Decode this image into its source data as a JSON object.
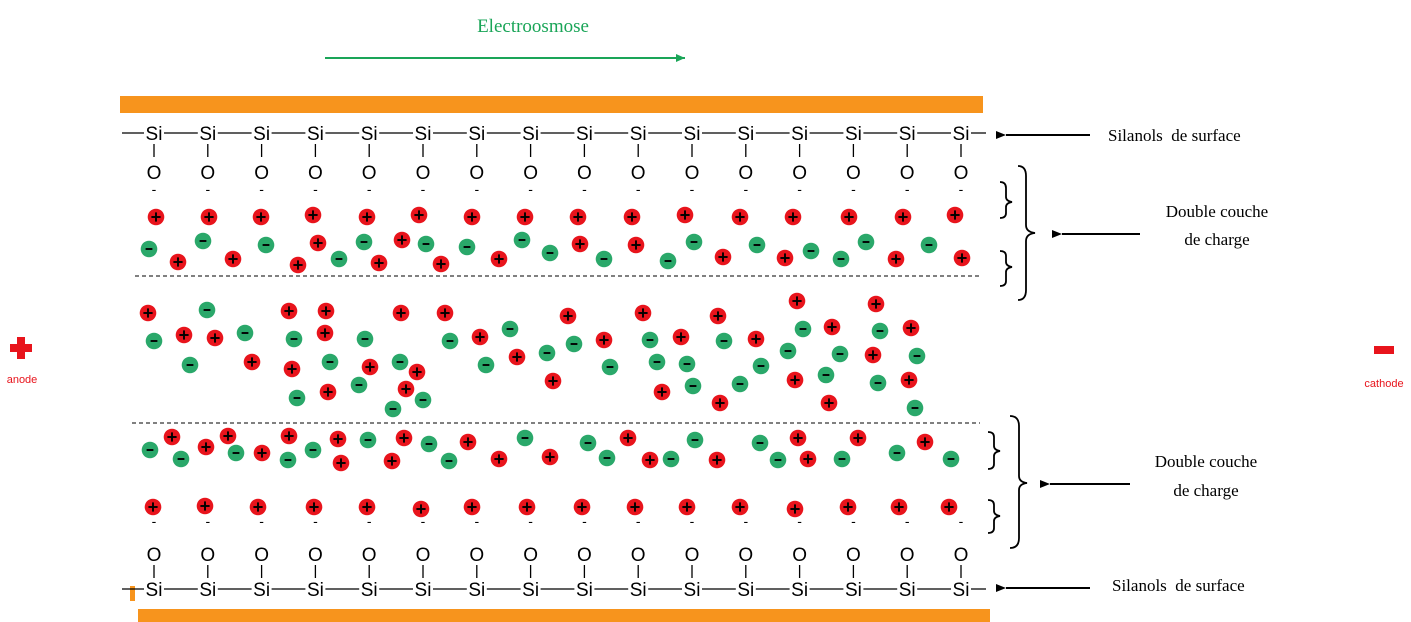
{
  "title": "Electroosmose",
  "labels": {
    "surface_top": "Silanols  de surface",
    "surface_bottom": "Silanols  de surface",
    "double_layer_top_1": "Double couche",
    "double_layer_top_2": "de charge",
    "double_layer_bottom_1": "Double couche",
    "double_layer_bottom_2": "de charge",
    "anode": "anode",
    "cathode": "cathode"
  },
  "chem": {
    "si": "Si",
    "o": "O",
    "neg": "-",
    "plus_symbol": "+",
    "minus_symbol": "−"
  },
  "colors": {
    "wall": "#f7941d",
    "arrow_flow": "#1aa558",
    "title": "#1aa558",
    "cation": "#e8141c",
    "anion": "#2aa86a",
    "electrode": "#e8141c",
    "text": "#000000"
  }
}
